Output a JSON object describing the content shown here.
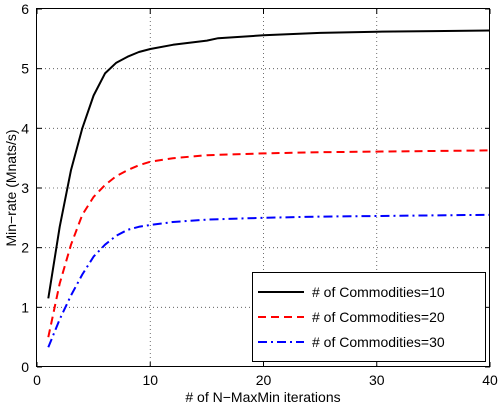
{
  "chart_data": {
    "type": "line",
    "title": "",
    "xlabel": "# of N−MaxMin iterations",
    "ylabel": "Min−rate (Mnats/s)",
    "xlim": [
      0,
      40
    ],
    "ylim": [
      0,
      6
    ],
    "xticks": [
      "0",
      "10",
      "20",
      "30",
      "40"
    ],
    "yticks": [
      "0",
      "1",
      "2",
      "3",
      "4",
      "5",
      "6"
    ],
    "grid": true,
    "legend_position": "bottom-right",
    "series": [
      {
        "name": "# of Commodities=10",
        "color": "#000000",
        "style": "solid",
        "points": [
          [
            1,
            1.15
          ],
          [
            2,
            2.35
          ],
          [
            3,
            3.3
          ],
          [
            4,
            4.0
          ],
          [
            5,
            4.55
          ],
          [
            6,
            4.92
          ],
          [
            7,
            5.1
          ],
          [
            8,
            5.2
          ],
          [
            9,
            5.28
          ],
          [
            10,
            5.33
          ],
          [
            12,
            5.4
          ],
          [
            15,
            5.47
          ],
          [
            16,
            5.51
          ],
          [
            20,
            5.56
          ],
          [
            25,
            5.6
          ],
          [
            30,
            5.62
          ],
          [
            35,
            5.63
          ],
          [
            40,
            5.64
          ]
        ]
      },
      {
        "name": "# of Commodities=20",
        "color": "#ff0000",
        "style": "dashed",
        "points": [
          [
            1,
            0.5
          ],
          [
            2,
            1.4
          ],
          [
            3,
            2.05
          ],
          [
            4,
            2.55
          ],
          [
            5,
            2.85
          ],
          [
            6,
            3.05
          ],
          [
            7,
            3.2
          ],
          [
            8,
            3.3
          ],
          [
            9,
            3.38
          ],
          [
            10,
            3.44
          ],
          [
            12,
            3.5
          ],
          [
            15,
            3.55
          ],
          [
            20,
            3.58
          ],
          [
            25,
            3.6
          ],
          [
            30,
            3.61
          ],
          [
            35,
            3.62
          ],
          [
            40,
            3.63
          ]
        ]
      },
      {
        "name": "# of Commodities=30",
        "color": "#0000ff",
        "style": "dashdot",
        "points": [
          [
            1,
            0.33
          ],
          [
            2,
            0.8
          ],
          [
            3,
            1.2
          ],
          [
            4,
            1.55
          ],
          [
            5,
            1.85
          ],
          [
            6,
            2.05
          ],
          [
            7,
            2.2
          ],
          [
            8,
            2.3
          ],
          [
            9,
            2.35
          ],
          [
            10,
            2.38
          ],
          [
            12,
            2.43
          ],
          [
            15,
            2.47
          ],
          [
            20,
            2.5
          ],
          [
            25,
            2.52
          ],
          [
            30,
            2.53
          ],
          [
            35,
            2.54
          ],
          [
            40,
            2.55
          ]
        ]
      }
    ]
  }
}
